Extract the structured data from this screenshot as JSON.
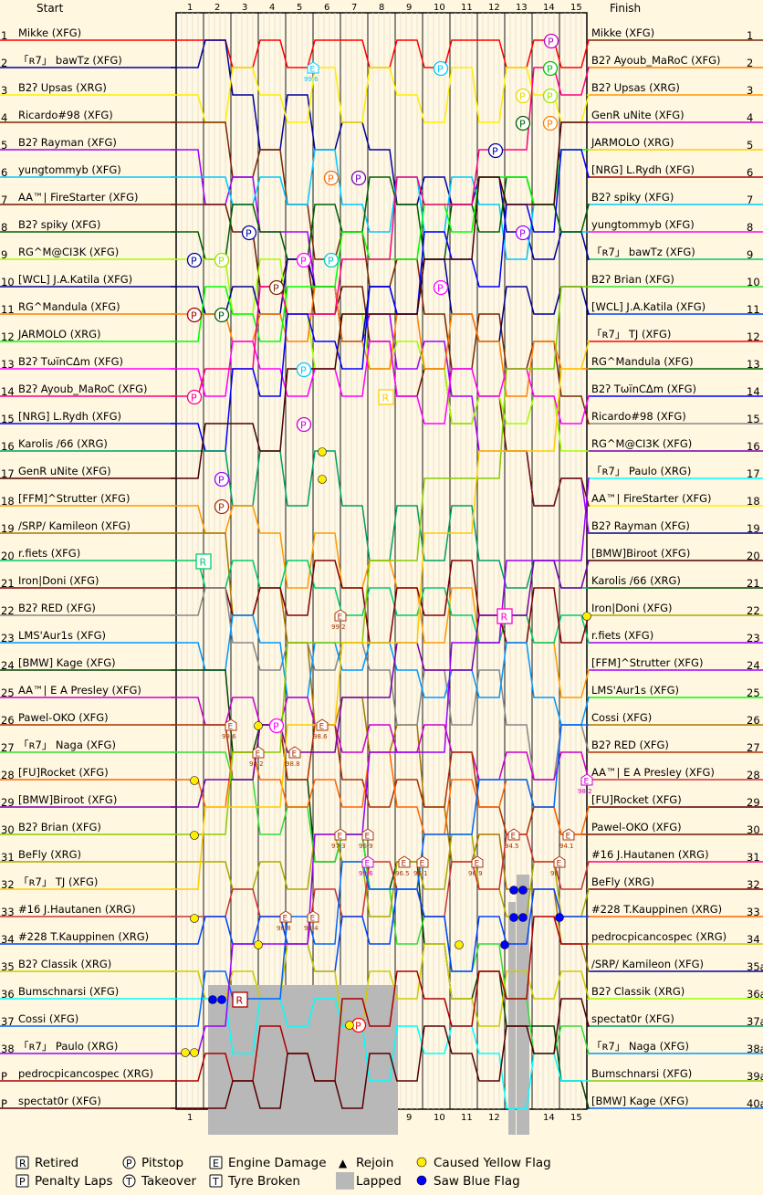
{
  "chart_data": {
    "type": "line",
    "headers": {
      "start": "Start",
      "finish": "Finish"
    },
    "laps": [
      1,
      2,
      3,
      4,
      5,
      6,
      7,
      8,
      9,
      10,
      11,
      12,
      13,
      14,
      15
    ],
    "start_positions": [
      "1",
      "2",
      "3",
      "4",
      "5",
      "6",
      "7",
      "8",
      "9",
      "10",
      "11",
      "12",
      "13",
      "14",
      "15",
      "16",
      "17",
      "18",
      "19",
      "20",
      "21",
      "22",
      "23",
      "24",
      "25",
      "26",
      "27",
      "28",
      "29",
      "30",
      "31",
      "32",
      "33",
      "34",
      "35",
      "36",
      "37",
      "38",
      "P",
      "P"
    ],
    "finish_positions": [
      "1",
      "2",
      "3",
      "4",
      "5",
      "6",
      "7",
      "8",
      "9",
      "10",
      "11",
      "12",
      "13",
      "14",
      "15",
      "16",
      "17",
      "18",
      "19",
      "20",
      "21",
      "22",
      "23",
      "24",
      "25",
      "26",
      "27",
      "28",
      "29",
      "30",
      "31",
      "32",
      "33",
      "34",
      "35a",
      "36a",
      "37a",
      "38a",
      "39a",
      "40a"
    ],
    "start_grid": [
      "Mikke (XFG)",
      "「ʀ7」 bawTz (XFG)",
      "B2ʔ Upsas (XRG)",
      "Ricardo#98 (XFG)",
      "B2ʔ Rayman (XFG)",
      "yungtommyb (XFG)",
      "AA™| FireStarter (XFG)",
      "B2ʔ spiky (XFG)",
      "RG^M@CI3K (XFG)",
      "[WCL] J.A.Katila (XFG)",
      "RG^Mandula (XFG)",
      "JARMOLO (XRG)",
      "B2ʔ TωïnCΔm (XFG)",
      "B2ʔ Ayoub_MaRoC (XFG)",
      "[NRG] L.Rydh (XFG)",
      "Karolis /66 (XRG)",
      "GenR uNite (XFG)",
      "[FFM]^Strutter (XFG)",
      "/SRP/ Kamileon (XFG)",
      "r.fiets (XFG)",
      "Iron|Doni (XFG)",
      "B2ʔ RED (XFG)",
      "LMS'Aur1s (XFG)",
      "[BMW] Kage (XFG)",
      "AA™| E A Presley (XFG)",
      "Pawel-OKO (XFG)",
      "「ʀ7」 Naga (XFG)",
      "[FU]Rocket (XFG)",
      "[BMW]Biroot (XFG)",
      "B2ʔ Brian (XFG)",
      "BeFly (XRG)",
      "「ʀ7」 TJ (XFG)",
      "#16 J.Hautanen (XRG)",
      "#228 T.Kauppinen (XRG)",
      "B2ʔ Classik (XRG)",
      "Bumschnarsi (XFG)",
      "Cossi (XFG)",
      "「ʀ7」 Paulo (XRG)",
      "pedrocpicancospec (XRG)",
      "spectat0r (XFG)"
    ],
    "finish_order": [
      "Mikke (XFG)",
      "B2ʔ Ayoub_MaRoC (XFG)",
      "B2ʔ Upsas (XRG)",
      "GenR uNite (XFG)",
      "JARMOLO (XRG)",
      "[NRG] L.Rydh (XFG)",
      "B2ʔ spiky (XFG)",
      "yungtommyb (XFG)",
      "「ʀ7」 bawTz (XFG)",
      "B2ʔ Brian (XFG)",
      "[WCL] J.A.Katila (XFG)",
      "「ʀ7」 TJ (XFG)",
      "RG^Mandula (XFG)",
      "B2ʔ TωïnCΔm (XFG)",
      "Ricardo#98 (XFG)",
      "RG^M@CI3K (XFG)",
      "「ʀ7」 Paulo (XRG)",
      "AA™| FireStarter (XFG)",
      "B2ʔ Rayman (XFG)",
      "[BMW]Biroot (XFG)",
      "Karolis /66 (XRG)",
      "Iron|Doni (XFG)",
      "r.fiets (XFG)",
      "[FFM]^Strutter (XFG)",
      "LMS'Aur1s (XFG)",
      "Cossi (XFG)",
      "B2ʔ RED (XFG)",
      "AA™| E A Presley (XFG)",
      "[FU]Rocket (XFG)",
      "Pawel-OKO (XFG)",
      "#16 J.Hautanen (XRG)",
      "BeFly (XRG)",
      "#228 T.Kauppinen (XRG)",
      "pedrocpicancospec (XRG)",
      "/SRP/ Kamileon (XFG)",
      "B2ʔ Classik (XRG)",
      "spectat0r (XFG)",
      "「ʀ7」 Naga (XFG)",
      "Bumschnarsi (XFG)",
      "[BMW] Kage (XFG)"
    ],
    "engine_damage_labels": [
      "99.6",
      "99.2",
      "98.6",
      "98.2",
      "98.8",
      "98.6",
      "98.8",
      "98.4",
      "97.3",
      "96.9",
      "99.6",
      "96.5",
      "96.1",
      "96.9",
      "94.5",
      "98",
      "94.1",
      "98.2"
    ],
    "legend": [
      {
        "symbol": "R",
        "label": "Retired"
      },
      {
        "symbol": "P",
        "label": "Pitstop"
      },
      {
        "symbol": "E",
        "label": "Engine Damage"
      },
      {
        "symbol": "▲",
        "label": "Rejoin"
      },
      {
        "symbol": "yellow-dot",
        "label": "Caused Yellow Flag"
      },
      {
        "symbol": "P",
        "label": "Penalty Laps"
      },
      {
        "symbol": "T",
        "label": "Takeover"
      },
      {
        "symbol": "T",
        "label": "Tyre Broken"
      },
      {
        "symbol": "grey-box",
        "label": "Lapped"
      },
      {
        "symbol": "blue-dot",
        "label": "Saw Blue Flag"
      }
    ],
    "colors": [
      "#ff0000",
      "#0000a0",
      "#ffee00",
      "#7a2800",
      "#a000ff",
      "#00c8ff",
      "#6b1a00",
      "#006000",
      "#a0ff00",
      "#00008b",
      "#ff8000",
      "#00ff00",
      "#ff00ff",
      "#ff0080",
      "#0000ff",
      "#00a060",
      "#4a0000",
      "#ff9900",
      "#aa7700",
      "#00cc66",
      "#800000",
      "#888888",
      "#0099ff",
      "#004400",
      "#cc00cc",
      "#aa3300",
      "#33dd33",
      "#ff6600",
      "#7700aa",
      "#88cc00",
      "#aaaa00",
      "#ffcc00",
      "#cc3333",
      "#0044ff",
      "#cccc00",
      "#00ffff",
      "#0066ff",
      "#9900ff",
      "#aa0000",
      "#550000"
    ]
  }
}
